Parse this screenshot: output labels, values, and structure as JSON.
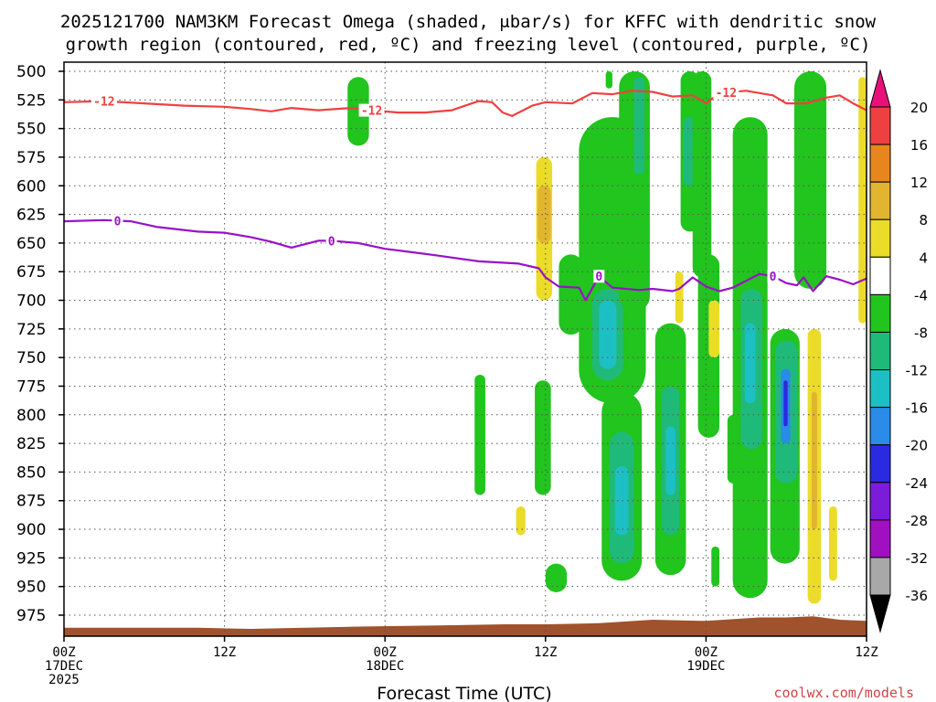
{
  "chart_data": {
    "type": "heatmap",
    "title_line1": "2025121700 NAM3KM Forecast Omega (shaded, μbar/s) for KFFC with dendritic snow",
    "title_line2": "growth region (contoured, red, ºC) and freezing level (contoured, purple, ºC)",
    "xlabel": "Forecast Time (UTC)",
    "credit": "coolwx.com/models",
    "x_units": "forecast hour",
    "xlim": [
      0,
      60
    ],
    "ylim": [
      500,
      990
    ],
    "y_ticks": [
      500,
      525,
      550,
      575,
      600,
      625,
      650,
      675,
      700,
      725,
      750,
      775,
      800,
      825,
      850,
      875,
      900,
      925,
      950,
      975
    ],
    "x_ticks": [
      {
        "hour": 0,
        "lines": [
          "00Z",
          "17DEC",
          "2025"
        ]
      },
      {
        "hour": 12,
        "lines": [
          "12Z"
        ]
      },
      {
        "hour": 24,
        "lines": [
          "00Z",
          "18DEC"
        ]
      },
      {
        "hour": 36,
        "lines": [
          "12Z"
        ]
      },
      {
        "hour": 48,
        "lines": [
          "00Z",
          "19DEC"
        ]
      },
      {
        "hour": 60,
        "lines": [
          "12Z"
        ]
      }
    ],
    "colorbar": {
      "labels": [
        "20",
        "16",
        "12",
        "8",
        "4",
        "-4",
        "-8",
        "-12",
        "-16",
        "-20",
        "-24",
        "-28",
        "-32",
        "-36"
      ],
      "bins": [
        {
          "from": 16,
          "to": 20,
          "color": "#ee4040"
        },
        {
          "from": 12,
          "to": 16,
          "color": "#e8861e"
        },
        {
          "from": 8,
          "to": 12,
          "color": "#e2b530"
        },
        {
          "from": 4,
          "to": 8,
          "color": "#ebdc2a"
        },
        {
          "from": -4,
          "to": 4,
          "color": "#ffffff"
        },
        {
          "from": -8,
          "to": -4,
          "color": "#22c41e"
        },
        {
          "from": -12,
          "to": -8,
          "color": "#1fba7a"
        },
        {
          "from": -16,
          "to": -12,
          "color": "#1cc0c4"
        },
        {
          "from": -20,
          "to": -16,
          "color": "#2a8be8"
        },
        {
          "from": -24,
          "to": -20,
          "color": "#2a2ae0"
        },
        {
          "from": -28,
          "to": -24,
          "color": "#7a1cd8"
        },
        {
          "from": -32,
          "to": -28,
          "color": "#a010c0"
        },
        {
          "from": -36,
          "to": -32,
          "color": "#a8a8a8"
        }
      ],
      "top_arrow_color": "#e8107a",
      "bottom_arrow_color": "#000000"
    },
    "colors": {
      "dgz_line": "#f04040",
      "freezing_line": "#9a10c8",
      "terrain": "#a0522d"
    },
    "contours": [
      {
        "name": "-12C (dendritic growth zone top)",
        "label": "-12",
        "color": "#f04040",
        "label_hours": [
          3,
          23,
          49.5
        ],
        "points": [
          [
            0,
            527
          ],
          [
            3,
            526
          ],
          [
            6,
            528
          ],
          [
            9,
            530
          ],
          [
            12,
            531
          ],
          [
            14,
            533
          ],
          [
            15.5,
            535
          ],
          [
            17,
            532
          ],
          [
            19,
            534
          ],
          [
            21.5,
            532
          ],
          [
            23,
            534
          ],
          [
            25,
            536
          ],
          [
            27,
            536
          ],
          [
            29,
            534
          ],
          [
            31,
            526
          ],
          [
            32,
            527
          ],
          [
            32.8,
            536
          ],
          [
            33.5,
            539
          ],
          [
            35,
            530
          ],
          [
            36,
            527
          ],
          [
            38,
            528
          ],
          [
            39.5,
            519
          ],
          [
            41,
            520
          ],
          [
            42.5,
            517
          ],
          [
            44,
            518
          ],
          [
            45.5,
            522
          ],
          [
            47,
            521
          ],
          [
            48,
            528
          ],
          [
            49,
            519
          ],
          [
            51,
            517
          ],
          [
            53,
            521
          ],
          [
            54,
            528
          ],
          [
            55.5,
            528
          ],
          [
            57,
            523
          ],
          [
            58,
            521
          ],
          [
            59,
            528
          ],
          [
            60,
            534
          ]
        ]
      },
      {
        "name": "0C (freezing level)",
        "label": "0",
        "color": "#9a10c8",
        "label_hours": [
          4,
          20,
          40,
          53
        ],
        "points": [
          [
            0,
            631
          ],
          [
            3,
            630
          ],
          [
            5,
            631
          ],
          [
            7,
            636
          ],
          [
            10,
            640
          ],
          [
            12,
            641
          ],
          [
            14,
            645
          ],
          [
            15.5,
            649
          ],
          [
            17,
            654
          ],
          [
            19,
            648
          ],
          [
            20,
            648
          ],
          [
            22,
            650
          ],
          [
            24,
            655
          ],
          [
            26,
            658
          ],
          [
            28,
            661
          ],
          [
            31,
            666
          ],
          [
            34,
            668
          ],
          [
            35.5,
            672
          ],
          [
            36,
            680
          ],
          [
            37,
            688
          ],
          [
            38.5,
            689
          ],
          [
            39,
            700
          ],
          [
            40,
            679
          ],
          [
            41,
            689
          ],
          [
            43,
            691
          ],
          [
            44,
            690
          ],
          [
            45.5,
            692
          ],
          [
            46,
            690
          ],
          [
            47,
            680
          ],
          [
            48,
            688
          ],
          [
            49,
            692
          ],
          [
            50,
            689
          ],
          [
            52,
            677
          ],
          [
            53,
            679
          ],
          [
            54,
            685
          ],
          [
            54.8,
            687
          ],
          [
            55.3,
            680
          ],
          [
            56,
            692
          ],
          [
            57,
            679
          ],
          [
            58,
            682
          ],
          [
            59,
            686
          ],
          [
            60,
            681
          ]
        ]
      }
    ],
    "terrain_top_hpa": [
      [
        0,
        986
      ],
      [
        10,
        986
      ],
      [
        14,
        987
      ],
      [
        18,
        986
      ],
      [
        22,
        985
      ],
      [
        28,
        984
      ],
      [
        33,
        983
      ],
      [
        36,
        983
      ],
      [
        40,
        982
      ],
      [
        44,
        979
      ],
      [
        48,
        980
      ],
      [
        52,
        977
      ],
      [
        54,
        977
      ],
      [
        56,
        976
      ],
      [
        58,
        979
      ],
      [
        60,
        980
      ]
    ],
    "omega_regions": [
      {
        "hours": [
          21.2,
          22.8
        ],
        "p": [
          505,
          565
        ],
        "omega": -6
      },
      {
        "hours": [
          35.3,
          36.5
        ],
        "p": [
          575,
          700
        ],
        "omega": 6
      },
      {
        "hours": [
          35.4,
          36.4
        ],
        "p": [
          600,
          650
        ],
        "omega": 9
      },
      {
        "hours": [
          33.8,
          34.5
        ],
        "p": [
          880,
          905
        ],
        "omega": 6
      },
      {
        "hours": [
          41.5,
          42.5
        ],
        "p": [
          630,
          660
        ],
        "omega": 5
      },
      {
        "hours": [
          40.5,
          41.0
        ],
        "p": [
          500,
          515
        ],
        "omega": -5
      },
      {
        "hours": [
          37.0,
          38.8
        ],
        "p": [
          660,
          730
        ],
        "omega": -6
      },
      {
        "hours": [
          38.5,
          43.5
        ],
        "p": [
          540,
          790
        ],
        "omega": -7
      },
      {
        "hours": [
          39.5,
          41.8
        ],
        "p": [
          690,
          770
        ],
        "omega": -12
      },
      {
        "hours": [
          40.0,
          41.3
        ],
        "p": [
          700,
          760
        ],
        "omega": -15
      },
      {
        "hours": [
          41.5,
          43.8
        ],
        "p": [
          500,
          710
        ],
        "omega": -6
      },
      {
        "hours": [
          42.6,
          43.4
        ],
        "p": [
          505,
          590
        ],
        "omega": -10
      },
      {
        "hours": [
          30.7,
          31.5
        ],
        "p": [
          765,
          870
        ],
        "omega": -6
      },
      {
        "hours": [
          35.2,
          36.4
        ],
        "p": [
          770,
          870
        ],
        "omega": -6
      },
      {
        "hours": [
          36.0,
          37.6
        ],
        "p": [
          930,
          955
        ],
        "omega": -5
      },
      {
        "hours": [
          40.2,
          43.2
        ],
        "p": [
          780,
          945
        ],
        "omega": -6
      },
      {
        "hours": [
          40.8,
          42.6
        ],
        "p": [
          815,
          930
        ],
        "omega": -10
      },
      {
        "hours": [
          41.2,
          42.2
        ],
        "p": [
          845,
          905
        ],
        "omega": -14
      },
      {
        "hours": [
          44.2,
          46.5
        ],
        "p": [
          720,
          940
        ],
        "omega": -6
      },
      {
        "hours": [
          44.7,
          46.0
        ],
        "p": [
          775,
          905
        ],
        "omega": -10
      },
      {
        "hours": [
          45.0,
          45.7
        ],
        "p": [
          810,
          870
        ],
        "omega": -14
      },
      {
        "hours": [
          46.1,
          47.5
        ],
        "p": [
          500,
          640
        ],
        "omega": -7
      },
      {
        "hours": [
          46.3,
          47.2
        ],
        "p": [
          540,
          600
        ],
        "omega": -11
      },
      {
        "hours": [
          45.7,
          46.3
        ],
        "p": [
          675,
          720
        ],
        "omega": 5
      },
      {
        "hours": [
          47.4,
          49.0
        ],
        "p": [
          660,
          820
        ],
        "omega": -6
      },
      {
        "hours": [
          47.0,
          48.4
        ],
        "p": [
          500,
          680
        ],
        "omega": -6
      },
      {
        "hours": [
          48.2,
          49.0
        ],
        "p": [
          700,
          750
        ],
        "omega": 5
      },
      {
        "hours": [
          49.6,
          50.5
        ],
        "p": [
          800,
          860
        ],
        "omega": -6
      },
      {
        "hours": [
          48.4,
          49.0
        ],
        "p": [
          915,
          950
        ],
        "omega": -6
      },
      {
        "hours": [
          50.0,
          52.6
        ],
        "p": [
          540,
          960
        ],
        "omega": -6
      },
      {
        "hours": [
          50.6,
          52.2
        ],
        "p": [
          690,
          830
        ],
        "omega": -10
      },
      {
        "hours": [
          50.9,
          51.7
        ],
        "p": [
          720,
          790
        ],
        "omega": -15
      },
      {
        "hours": [
          52.8,
          55.0
        ],
        "p": [
          725,
          930
        ],
        "omega": -6
      },
      {
        "hours": [
          53.2,
          54.8
        ],
        "p": [
          735,
          860
        ],
        "omega": -11
      },
      {
        "hours": [
          53.6,
          54.3
        ],
        "p": [
          760,
          825
        ],
        "omega": -17
      },
      {
        "hours": [
          53.8,
          54.1
        ],
        "p": [
          770,
          810
        ],
        "omega": -21
      },
      {
        "hours": [
          54.6,
          57.0
        ],
        "p": [
          500,
          690
        ],
        "omega": -6
      },
      {
        "hours": [
          55.2,
          56.4
        ],
        "p": [
          500,
          600
        ],
        "omega": -6
      },
      {
        "hours": [
          55.6,
          56.6
        ],
        "p": [
          725,
          965
        ],
        "omega": 6
      },
      {
        "hours": [
          55.9,
          56.3
        ],
        "p": [
          780,
          900
        ],
        "omega": 10
      },
      {
        "hours": [
          57.2,
          57.8
        ],
        "p": [
          880,
          945
        ],
        "omega": 6
      },
      {
        "hours": [
          59.4,
          60.0
        ],
        "p": [
          505,
          720
        ],
        "omega": 6
      }
    ]
  }
}
